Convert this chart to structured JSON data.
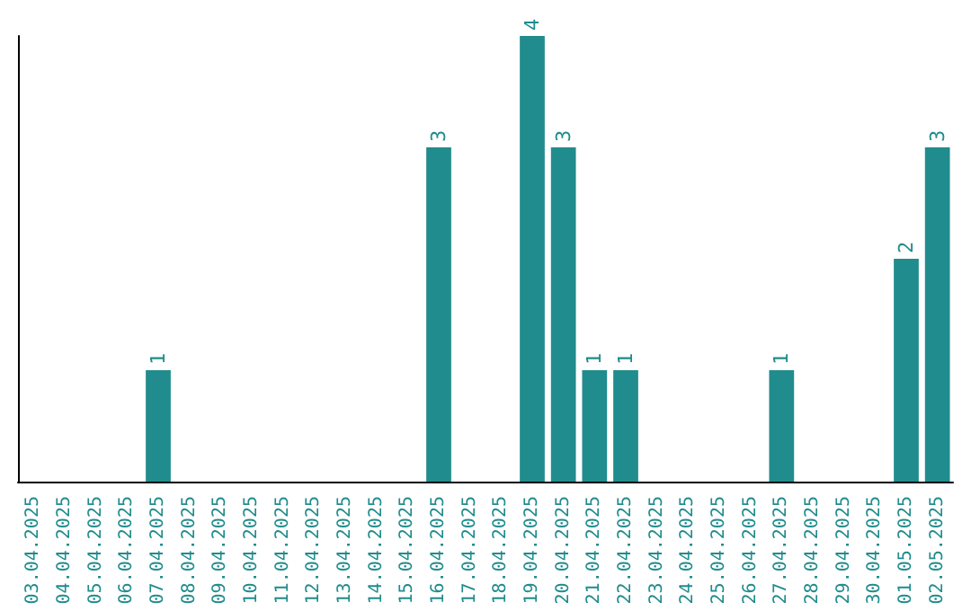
{
  "chart_data": {
    "type": "bar",
    "categories": [
      "03.04.2025",
      "04.04.2025",
      "05.04.2025",
      "06.04.2025",
      "07.04.2025",
      "08.04.2025",
      "09.04.2025",
      "10.04.2025",
      "11.04.2025",
      "12.04.2025",
      "13.04.2025",
      "14.04.2025",
      "15.04.2025",
      "16.04.2025",
      "17.04.2025",
      "18.04.2025",
      "19.04.2025",
      "20.04.2025",
      "21.04.2025",
      "22.04.2025",
      "23.04.2025",
      "24.04.2025",
      "25.04.2025",
      "26.04.2025",
      "27.04.2025",
      "28.04.2025",
      "29.04.2025",
      "30.04.2025",
      "01.05.2025",
      "02.05.2025"
    ],
    "values": [
      0,
      0,
      0,
      0,
      1,
      0,
      0,
      0,
      0,
      0,
      0,
      0,
      0,
      3,
      0,
      0,
      4,
      3,
      1,
      1,
      0,
      0,
      0,
      0,
      1,
      0,
      0,
      0,
      2,
      3
    ],
    "value_labels": [
      null,
      null,
      null,
      null,
      "1",
      null,
      null,
      null,
      null,
      null,
      null,
      null,
      null,
      "3",
      null,
      null,
      "4",
      "3",
      "1",
      "1",
      null,
      null,
      null,
      null,
      "1",
      null,
      null,
      null,
      "2",
      "3"
    ],
    "color": "#218c8d",
    "tick_labels": "x",
    "grid": false
  }
}
